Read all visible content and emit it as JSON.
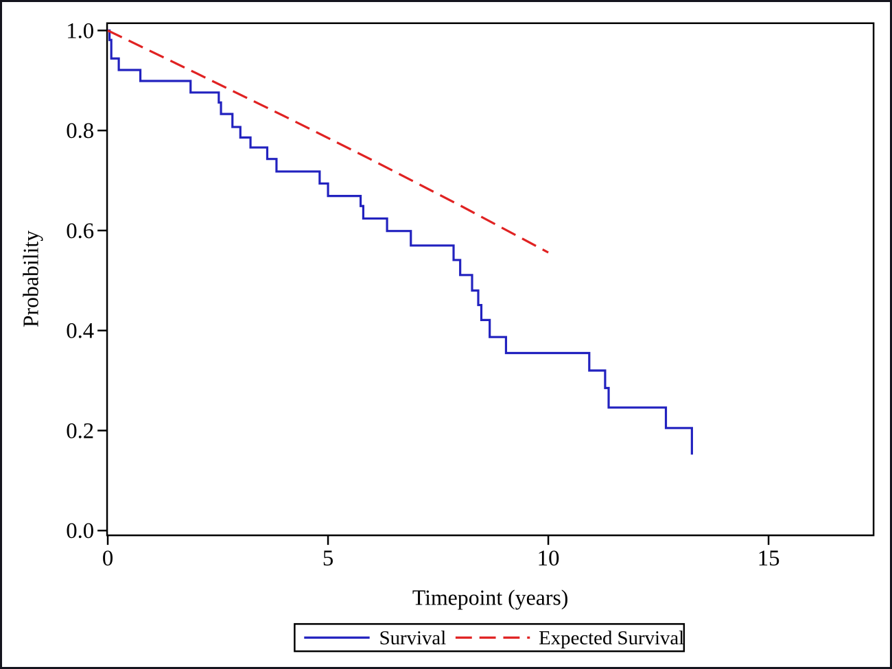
{
  "colors": {
    "survival": "#2222bf",
    "expected_survival": "#e02222",
    "axis": "#000000",
    "frame": "#15151e",
    "background": "#ffffff"
  },
  "chart_data": {
    "type": "line",
    "title": "",
    "xlabel": "Timepoint (years)",
    "ylabel": "Probability",
    "xlim": [
      0,
      17.4
    ],
    "ylim": [
      0.0,
      1.0
    ],
    "grid": false,
    "legend_position": "bottom",
    "x_axis": {
      "ticks": [
        {
          "value": 0,
          "label": "0"
        },
        {
          "value": 5,
          "label": "5"
        },
        {
          "value": 10,
          "label": "10"
        },
        {
          "value": 15,
          "label": "15"
        }
      ]
    },
    "y_axis": {
      "ticks": [
        {
          "value": 1.0,
          "label": "1.0"
        },
        {
          "value": 0.8,
          "label": "0.8"
        },
        {
          "value": 0.6,
          "label": "0.6"
        },
        {
          "value": 0.4,
          "label": "0.4"
        },
        {
          "value": 0.2,
          "label": "0.2"
        },
        {
          "value": 0.0,
          "label": "0.0"
        }
      ]
    },
    "series": [
      {
        "name": "Survival",
        "style": "step",
        "line": "solid",
        "color": "#2222bf",
        "points": [
          [
            0.0,
            1.0
          ],
          [
            0.04,
            0.981
          ],
          [
            0.08,
            0.944
          ],
          [
            0.25,
            0.921
          ],
          [
            0.74,
            0.899
          ],
          [
            1.88,
            0.876
          ],
          [
            2.52,
            0.856
          ],
          [
            2.57,
            0.833
          ],
          [
            2.83,
            0.807
          ],
          [
            3.01,
            0.786
          ],
          [
            3.24,
            0.766
          ],
          [
            3.62,
            0.743
          ],
          [
            3.83,
            0.718
          ],
          [
            4.81,
            0.694
          ],
          [
            5.0,
            0.669
          ],
          [
            5.74,
            0.649
          ],
          [
            5.8,
            0.624
          ],
          [
            6.34,
            0.599
          ],
          [
            6.88,
            0.57
          ],
          [
            7.85,
            0.541
          ],
          [
            8.0,
            0.511
          ],
          [
            8.27,
            0.48
          ],
          [
            8.41,
            0.451
          ],
          [
            8.48,
            0.421
          ],
          [
            8.67,
            0.387
          ],
          [
            9.04,
            0.355
          ],
          [
            10.93,
            0.32
          ],
          [
            11.29,
            0.285
          ],
          [
            11.37,
            0.246
          ],
          [
            12.67,
            0.205
          ],
          [
            13.26,
            0.152
          ]
        ]
      },
      {
        "name": "Expected Survival",
        "style": "line",
        "line": "dashed",
        "color": "#e02222",
        "points": [
          [
            0,
            1.0
          ],
          [
            2,
            0.915
          ],
          [
            4,
            0.829
          ],
          [
            6,
            0.741
          ],
          [
            8,
            0.65
          ],
          [
            10,
            0.556
          ]
        ]
      }
    ]
  }
}
